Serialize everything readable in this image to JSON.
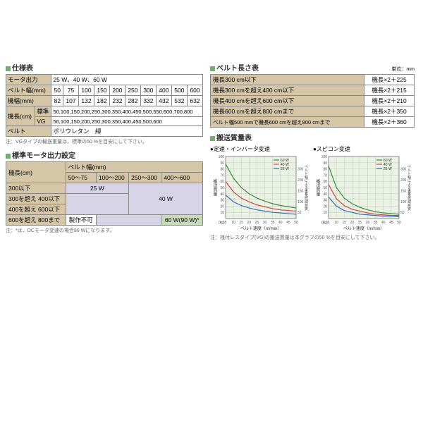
{
  "spec": {
    "title": "仕様表",
    "rows": [
      {
        "h": "モータ出力",
        "v": "25 W、40 W、60 W"
      },
      {
        "h": "ベルト幅(mm)",
        "cells": [
          "50",
          "75",
          "100",
          "150",
          "200",
          "250",
          "300",
          "400",
          "500",
          "600"
        ]
      },
      {
        "h": "機幅(mm)",
        "cells": [
          "82",
          "107",
          "132",
          "182",
          "232",
          "282",
          "332",
          "432",
          "532",
          "632"
        ]
      },
      {
        "h": "機長(cm)",
        "sub1": "標準",
        "v1": "50,100,150,200,250,300,350,400,450,500,550,600,700,800",
        "sub2": "VG",
        "v2": "50,100,150,200,250,300,350,400,450,500,600"
      },
      {
        "h": "ベルト",
        "v": "ポリウレタン　緑"
      }
    ],
    "note": "注：VGタイプの輸送重量は、標準の50 %を目安にして下さい。"
  },
  "belt_len": {
    "title": "ベルト長さ表",
    "unit": "単位：mm",
    "rows": [
      {
        "c": "機長300 cm以下",
        "f": "機長×2＋225"
      },
      {
        "c": "機長300 cmを超え400 cm以下",
        "f": "機長×2＋215"
      },
      {
        "c": "機長400 cmを超え600 cm以下",
        "f": "機長×2＋210"
      },
      {
        "c": "機長600 cmを超え800 cmまで",
        "f": "機長×2＋350"
      },
      {
        "c": "ベルト幅500 mmで機長600 cmを超え800 cmまで",
        "f": "機長×2＋360"
      }
    ]
  },
  "motor": {
    "title": "標準モータ出力設定",
    "row_h": "機長(cm)",
    "col_h": "ベルト幅(mm)",
    "cols": [
      "50～75",
      "100～200",
      "250～300",
      "400～600"
    ],
    "rows": [
      "300以下",
      "300を超え 400以下",
      "400を超え 600以下",
      "600を超え 800まで"
    ],
    "w25": "25 W",
    "w40": "40 W",
    "w60": "60 W(90 W)*",
    "np": "製作不可",
    "note": "注：*は、DCモータ変速の場合90 Wになります。"
  },
  "charts": {
    "title": "搬送質量表",
    "sub1": "定速・インバータ変速",
    "sub2": "スピコン変速",
    "legend": [
      "60 W",
      "40 W",
      "25 W"
    ],
    "colors": {
      "60": "#3a8a3a",
      "40": "#d04848",
      "25": "#3a6ab8"
    },
    "ylabel": "搬送質量",
    "yunit": "(kg)",
    "xlabel": "ベルト速度（m/min）",
    "ylabel2": "ベルト幅による重量低減目安",
    "yunit2": "(mm)",
    "yticks": [
      0,
      10,
      20,
      30,
      40,
      50,
      60,
      70,
      80,
      90,
      100
    ],
    "y2ticks": [
      50,
      100,
      150,
      200,
      300
    ],
    "xticks": [
      5,
      10,
      15,
      20,
      25,
      30,
      35,
      40,
      45,
      50
    ],
    "note": "注：桟付レスタイプ(VG)の搬送質量は本グラフの50 %を目安にして下さい。"
  }
}
